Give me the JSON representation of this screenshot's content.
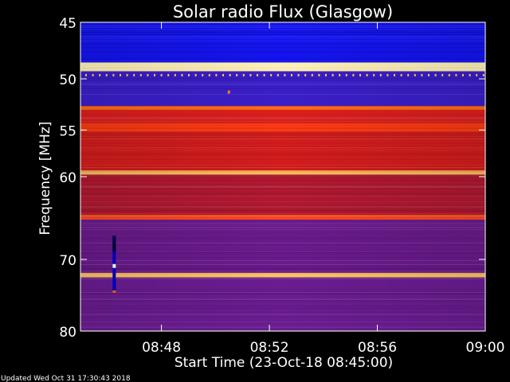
{
  "chart_data": {
    "type": "heatmap",
    "title": "Solar radio Flux (Glasgow)",
    "xlabel": "Start Time (23-Oct-18 08:45:00)",
    "ylabel": "Frequency [MHz]",
    "x_range": [
      "08:45",
      "09:00"
    ],
    "x_ticks": [
      "08:48",
      "08:52",
      "08:56",
      "09:00"
    ],
    "y_range_mhz": [
      45,
      80
    ],
    "y_ticks": [
      "45",
      "50",
      "55",
      "60",
      "70",
      "80"
    ],
    "y_tick_values": [
      45,
      50,
      55,
      60,
      70,
      80
    ],
    "y_scale": "log",
    "bands": [
      {
        "from_mhz": 45.0,
        "to_mhz": 48.5,
        "level": "low",
        "color": "#1414f0"
      },
      {
        "from_mhz": 48.5,
        "to_mhz": 49.3,
        "level": "very high",
        "color": "#fff0b4"
      },
      {
        "from_mhz": 49.3,
        "to_mhz": 52.6,
        "level": "low",
        "color": "#3a1ec8"
      },
      {
        "from_mhz": 52.6,
        "to_mhz": 53.0,
        "level": "high",
        "color": "#ff6414"
      },
      {
        "from_mhz": 53.0,
        "to_mhz": 54.3,
        "level": "medium",
        "color": "#dc1e1e"
      },
      {
        "from_mhz": 54.3,
        "to_mhz": 55.2,
        "level": "high",
        "color": "#ff3c14"
      },
      {
        "from_mhz": 55.2,
        "to_mhz": 59.3,
        "level": "medium",
        "color": "#d21c1c"
      },
      {
        "from_mhz": 59.3,
        "to_mhz": 59.8,
        "level": "very high",
        "color": "#ffb45a"
      },
      {
        "from_mhz": 59.8,
        "to_mhz": 64.4,
        "level": "medium",
        "color": "#b01830"
      },
      {
        "from_mhz": 64.4,
        "to_mhz": 65.0,
        "level": "high",
        "color": "#ff4a20"
      },
      {
        "from_mhz": 65.0,
        "to_mhz": 71.8,
        "level": "low-medium",
        "color": "#6a1a8c"
      },
      {
        "from_mhz": 71.8,
        "to_mhz": 72.4,
        "level": "very high",
        "color": "#ffc060"
      },
      {
        "from_mhz": 72.4,
        "to_mhz": 80.0,
        "level": "low-medium",
        "color": "#6a1c90"
      }
    ],
    "events": [
      {
        "time": "08:46:15",
        "from_mhz": 67.0,
        "to_mhz": 74.5,
        "description": "short vertical burst",
        "color": "#0000c8"
      }
    ],
    "colorbar": false,
    "grid": false
  },
  "footer": {
    "updated": "Updated Wed Oct 31 17:30:43 2018"
  },
  "colors": {
    "background": "#000000",
    "text": "#ffffff"
  }
}
